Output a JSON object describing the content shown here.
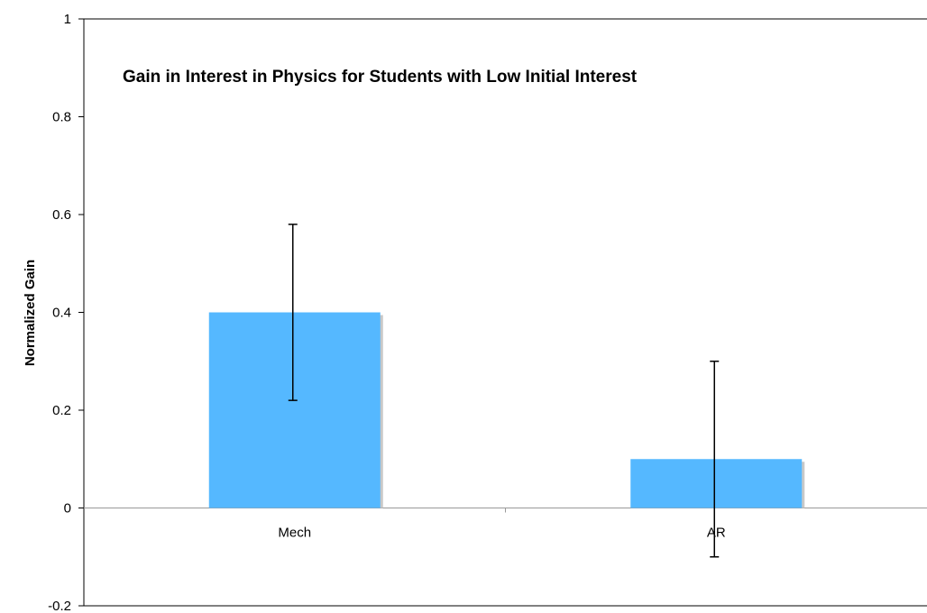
{
  "chart_data": {
    "type": "bar",
    "title": "Gain in Interest in Physics for Students with Low Initial Interest",
    "xlabel": "",
    "ylabel": "Normalized Gain",
    "categories": [
      "Mech",
      "AR"
    ],
    "values": [
      0.4,
      0.1
    ],
    "error_bars": [
      {
        "low": 0.22,
        "high": 0.58
      },
      {
        "low": -0.1,
        "high": 0.3
      }
    ],
    "ylim": [
      -0.2,
      1
    ],
    "yticks": [
      "-0.2",
      "0",
      "0.2",
      "0.4",
      "0.6",
      "0.8",
      "1"
    ],
    "grid": false,
    "legend": "none",
    "colors": {
      "bar": "#55b8ff",
      "bar_shadow": "#c8c8c8",
      "axis": "#000000",
      "zero_line": "#999999"
    }
  }
}
